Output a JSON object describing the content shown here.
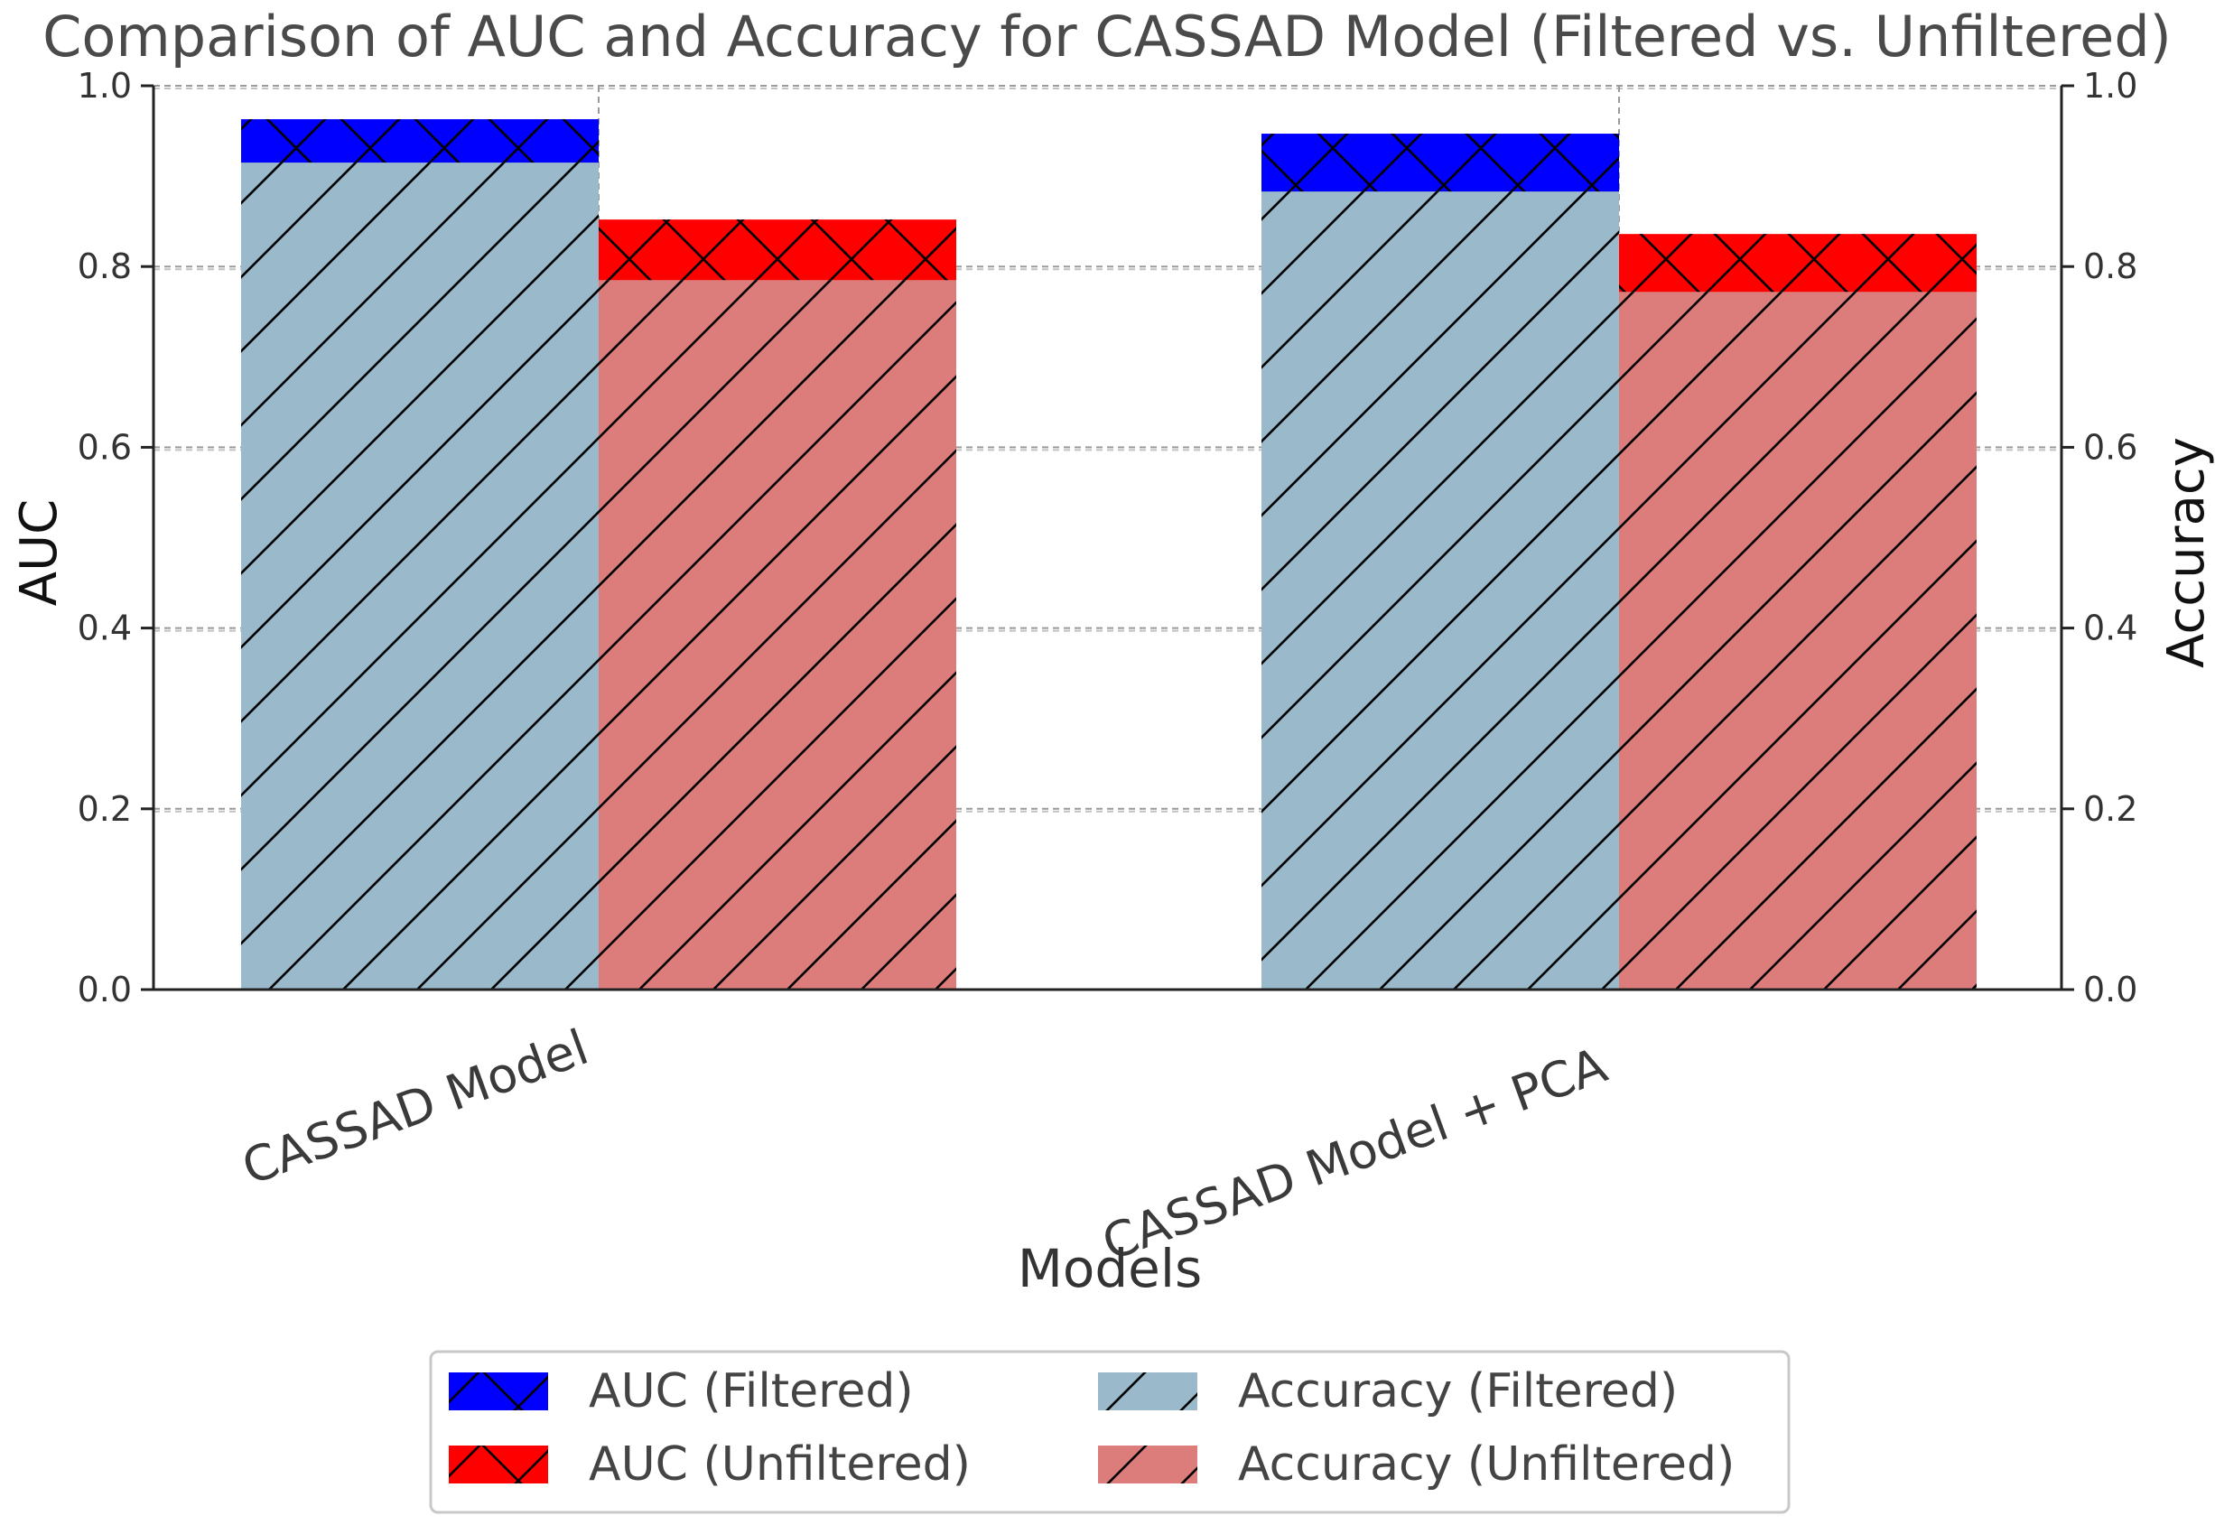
{
  "colors": {
    "auc_filtered": "#0000ff",
    "auc_unfiltered": "#ff0000",
    "acc_filtered": "#9ab9cb",
    "acc_unfiltered": "#dd7d7b"
  },
  "chart_data": {
    "type": "bar",
    "title": "Comparison of AUC and Accuracy for CASSAD Model (Filtered vs. Unfiltered)",
    "xlabel": "Models",
    "ylabel": "AUC",
    "ylabel_right": "Accuracy",
    "categories": [
      "CASSAD Model",
      "CASSAD Model + PCA"
    ],
    "ylim": [
      0,
      1.0
    ],
    "ylim_right": [
      0,
      1.0
    ],
    "yticks": [
      0.0,
      0.2,
      0.4,
      0.6,
      0.8,
      1.0
    ],
    "ytick_labels": [
      "0.0",
      "0.2",
      "0.4",
      "0.6",
      "0.8",
      "1.0"
    ],
    "grid": true,
    "legend_position": "bottom-center",
    "series": [
      {
        "name": "AUC (Filtered)",
        "axis": "left",
        "group": "filtered",
        "hatch": "cross",
        "values": [
          0.963,
          0.947
        ]
      },
      {
        "name": "AUC (Unfiltered)",
        "axis": "left",
        "group": "unfiltered",
        "hatch": "cross",
        "values": [
          0.852,
          0.836
        ]
      },
      {
        "name": "Accuracy (Filtered)",
        "axis": "right",
        "group": "filtered",
        "hatch": "diagonal",
        "values": [
          0.915,
          0.883
        ]
      },
      {
        "name": "Accuracy (Unfiltered)",
        "axis": "right",
        "group": "unfiltered",
        "hatch": "diagonal",
        "values": [
          0.785,
          0.772
        ]
      }
    ]
  }
}
